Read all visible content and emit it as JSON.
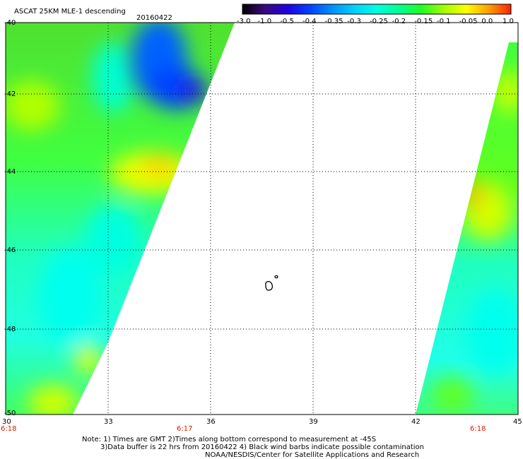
{
  "header": {
    "title": "ASCAT 25KM MLE-1 descending",
    "date": "20160422"
  },
  "colorbar": {
    "labels": [
      "-3.0",
      "-1.0",
      "-0.5",
      "-0.4",
      "-0.35",
      "-0.3",
      "-0.25",
      "-0.2",
      "-0.15",
      "-0.1",
      "-0.05",
      "0.0",
      "1.0"
    ],
    "colors": [
      "#000000",
      "#3a0a80",
      "#2000e0",
      "#0040ff",
      "#0090ff",
      "#00d0ff",
      "#00ffe0",
      "#00ff90",
      "#20ff20",
      "#a0ff00",
      "#ffff00",
      "#ffa000",
      "#ff2000"
    ]
  },
  "axes": {
    "lat_labels": [
      "-40",
      "-42",
      "-44",
      "-46",
      "-48",
      "-50"
    ],
    "lon_labels": [
      "30",
      "33",
      "36",
      "39",
      "42",
      "45"
    ],
    "lat_range": [
      -50,
      -40
    ],
    "lon_range": [
      30,
      45
    ]
  },
  "times": {
    "left": "6:18",
    "middle": "6:17",
    "right": "6:18"
  },
  "footer": {
    "line1": "Note: 1) Times are GMT 2)Times along bottom correspond to measurement at -45S",
    "line2": "3)Data buffer is 22 hrs from 20160422 4) Black wind barbs indicate possible contamination",
    "line3": "NOAA/NESDIS/Center for Satellite Applications and Research"
  }
}
